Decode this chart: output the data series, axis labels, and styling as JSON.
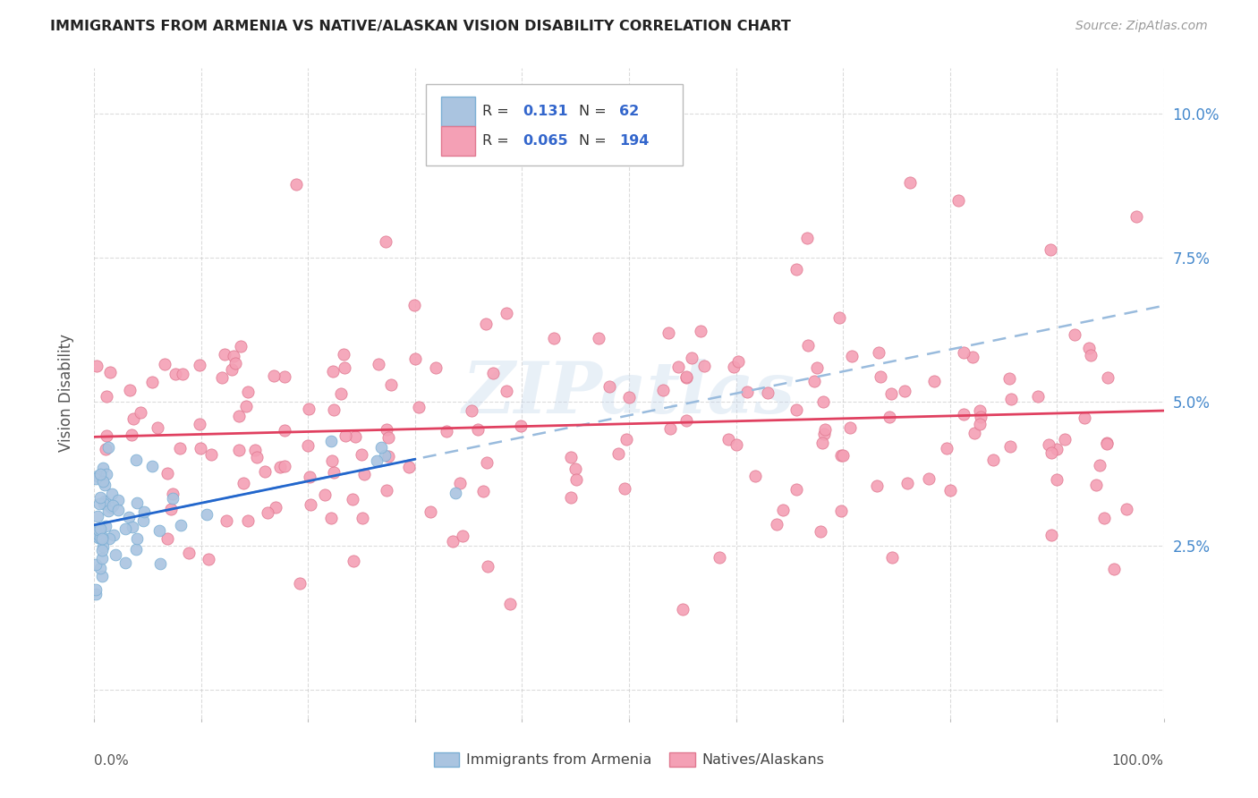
{
  "title": "IMMIGRANTS FROM ARMENIA VS NATIVE/ALASKAN VISION DISABILITY CORRELATION CHART",
  "source": "Source: ZipAtlas.com",
  "ylabel": "Vision Disability",
  "yticks": [
    0.0,
    0.025,
    0.05,
    0.075,
    0.1
  ],
  "ytick_labels": [
    "",
    "2.5%",
    "5.0%",
    "7.5%",
    "10.0%"
  ],
  "xlim": [
    0.0,
    1.0
  ],
  "ylim": [
    -0.005,
    0.108
  ],
  "watermark": "ZIPatlas",
  "armenia_color": "#aac4e0",
  "armenia_edge": "#7bafd4",
  "native_color": "#f4a0b5",
  "native_edge": "#e07890",
  "line_armenia_color": "#2266cc",
  "line_native_color": "#e04060",
  "line_armenia_dash_color": "#99bbdd",
  "background_color": "#ffffff",
  "grid_color": "#cccccc",
  "title_color": "#222222",
  "source_color": "#999999",
  "tick_color": "#4488cc",
  "label_color": "#555555"
}
